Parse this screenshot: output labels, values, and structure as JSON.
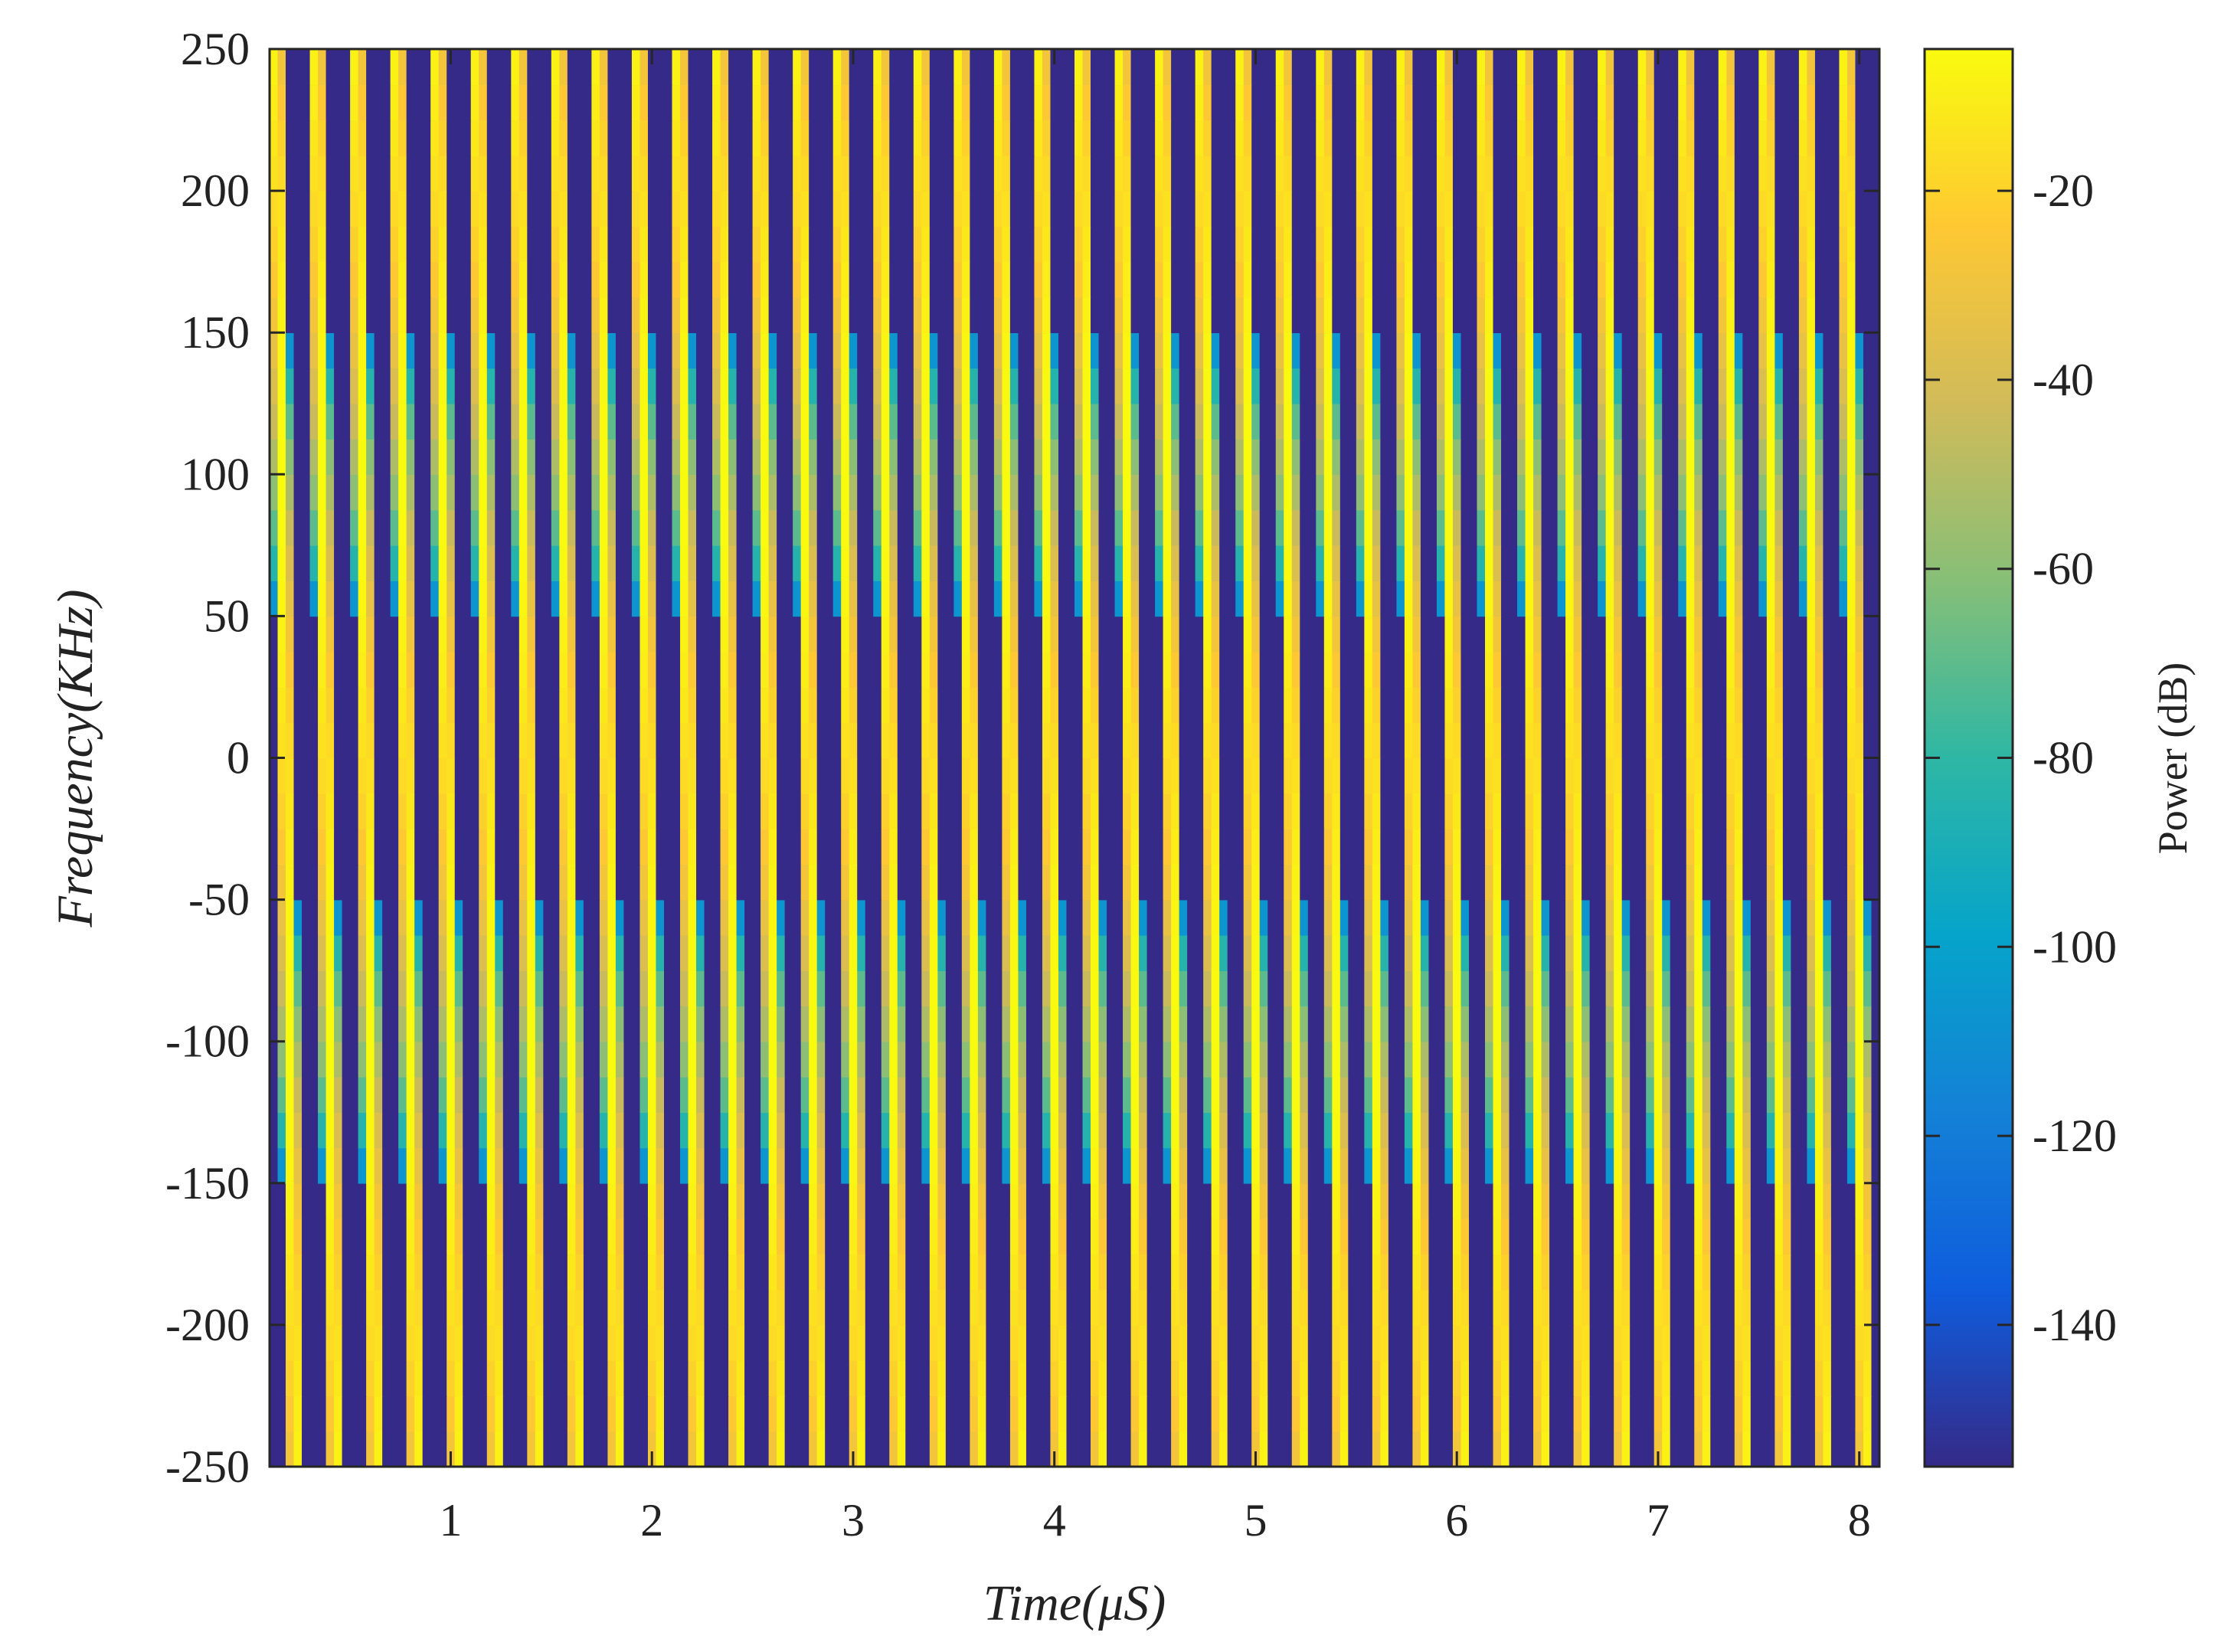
{
  "chart_data": {
    "type": "heatmap",
    "title": "",
    "xlabel": "Time(μS)",
    "ylabel": "Frequency(KHz)",
    "colorbar_label": "Power (dB)",
    "xlim": [
      0.1,
      8.1
    ],
    "ylim": [
      -250,
      250
    ],
    "clim": [
      -155,
      -5
    ],
    "x_ticks": [
      1,
      2,
      3,
      4,
      5,
      6,
      7,
      8
    ],
    "y_ticks": [
      -250,
      -200,
      -150,
      -100,
      -50,
      0,
      50,
      100,
      150,
      200,
      250
    ],
    "colorbar_ticks": [
      -140,
      -120,
      -100,
      -80,
      -60,
      -40,
      -20
    ],
    "colormap": "parula",
    "colormap_stops": [
      "#352a87",
      "#0f5cdd",
      "#1481d6",
      "#06a4ca",
      "#2eb7a4",
      "#87bf77",
      "#d1bb59",
      "#fec832",
      "#f9fb0e"
    ],
    "grid": false,
    "signal_description": "Time-frequency power map of a sequence of chirped pulses; high power bands (about -5 dB) alternate with low power gaps (about -150 dB).",
    "band_period_us": 0.2,
    "band_drift_us_over_full_freq_span": 0.1,
    "columns_per_us": 25,
    "bands": [
      {
        "x_center_at_0kHz_us": 0.18,
        "peak_db": -5
      },
      {
        "x_center_at_0kHz_us": 0.38,
        "peak_db": -5
      },
      {
        "x_center_at_0kHz_us": 0.58,
        "peak_db": -5
      },
      {
        "x_center_at_0kHz_us": 0.78,
        "peak_db": -5
      },
      {
        "x_center_at_0kHz_us": 0.98,
        "peak_db": -5
      },
      {
        "x_center_at_0kHz_us": 1.18,
        "peak_db": -5
      },
      {
        "x_center_at_0kHz_us": 1.38,
        "peak_db": -5
      },
      {
        "x_center_at_0kHz_us": 1.58,
        "peak_db": -5
      },
      {
        "x_center_at_0kHz_us": 1.78,
        "peak_db": -5
      },
      {
        "x_center_at_0kHz_us": 1.98,
        "peak_db": -5
      },
      {
        "x_center_at_0kHz_us": 2.18,
        "peak_db": -5
      },
      {
        "x_center_at_0kHz_us": 2.38,
        "peak_db": -5
      },
      {
        "x_center_at_0kHz_us": 2.58,
        "peak_db": -5
      },
      {
        "x_center_at_0kHz_us": 2.78,
        "peak_db": -5
      },
      {
        "x_center_at_0kHz_us": 2.98,
        "peak_db": -5
      },
      {
        "x_center_at_0kHz_us": 3.18,
        "peak_db": -5
      },
      {
        "x_center_at_0kHz_us": 3.38,
        "peak_db": -5
      },
      {
        "x_center_at_0kHz_us": 3.58,
        "peak_db": -5
      },
      {
        "x_center_at_0kHz_us": 3.78,
        "peak_db": -5
      },
      {
        "x_center_at_0kHz_us": 3.98,
        "peak_db": -5
      },
      {
        "x_center_at_0kHz_us": 4.18,
        "peak_db": -5
      },
      {
        "x_center_at_0kHz_us": 4.38,
        "peak_db": -5
      },
      {
        "x_center_at_0kHz_us": 4.58,
        "peak_db": -5
      },
      {
        "x_center_at_0kHz_us": 4.78,
        "peak_db": -5
      },
      {
        "x_center_at_0kHz_us": 4.98,
        "peak_db": -5
      },
      {
        "x_center_at_0kHz_us": 5.18,
        "peak_db": -5
      },
      {
        "x_center_at_0kHz_us": 5.38,
        "peak_db": -5
      },
      {
        "x_center_at_0kHz_us": 5.58,
        "peak_db": -5
      },
      {
        "x_center_at_0kHz_us": 5.78,
        "peak_db": -5
      },
      {
        "x_center_at_0kHz_us": 5.98,
        "peak_db": -5
      },
      {
        "x_center_at_0kHz_us": 6.18,
        "peak_db": -5
      },
      {
        "x_center_at_0kHz_us": 6.38,
        "peak_db": -5
      },
      {
        "x_center_at_0kHz_us": 6.58,
        "peak_db": -5
      },
      {
        "x_center_at_0kHz_us": 6.78,
        "peak_db": -5
      },
      {
        "x_center_at_0kHz_us": 6.98,
        "peak_db": -5
      },
      {
        "x_center_at_0kHz_us": 7.18,
        "peak_db": -5
      },
      {
        "x_center_at_0kHz_us": 7.38,
        "peak_db": -5
      },
      {
        "x_center_at_0kHz_us": 7.58,
        "peak_db": -5
      },
      {
        "x_center_at_0kHz_us": 7.78,
        "peak_db": -5
      },
      {
        "x_center_at_0kHz_us": 7.98,
        "peak_db": -5
      }
    ]
  }
}
